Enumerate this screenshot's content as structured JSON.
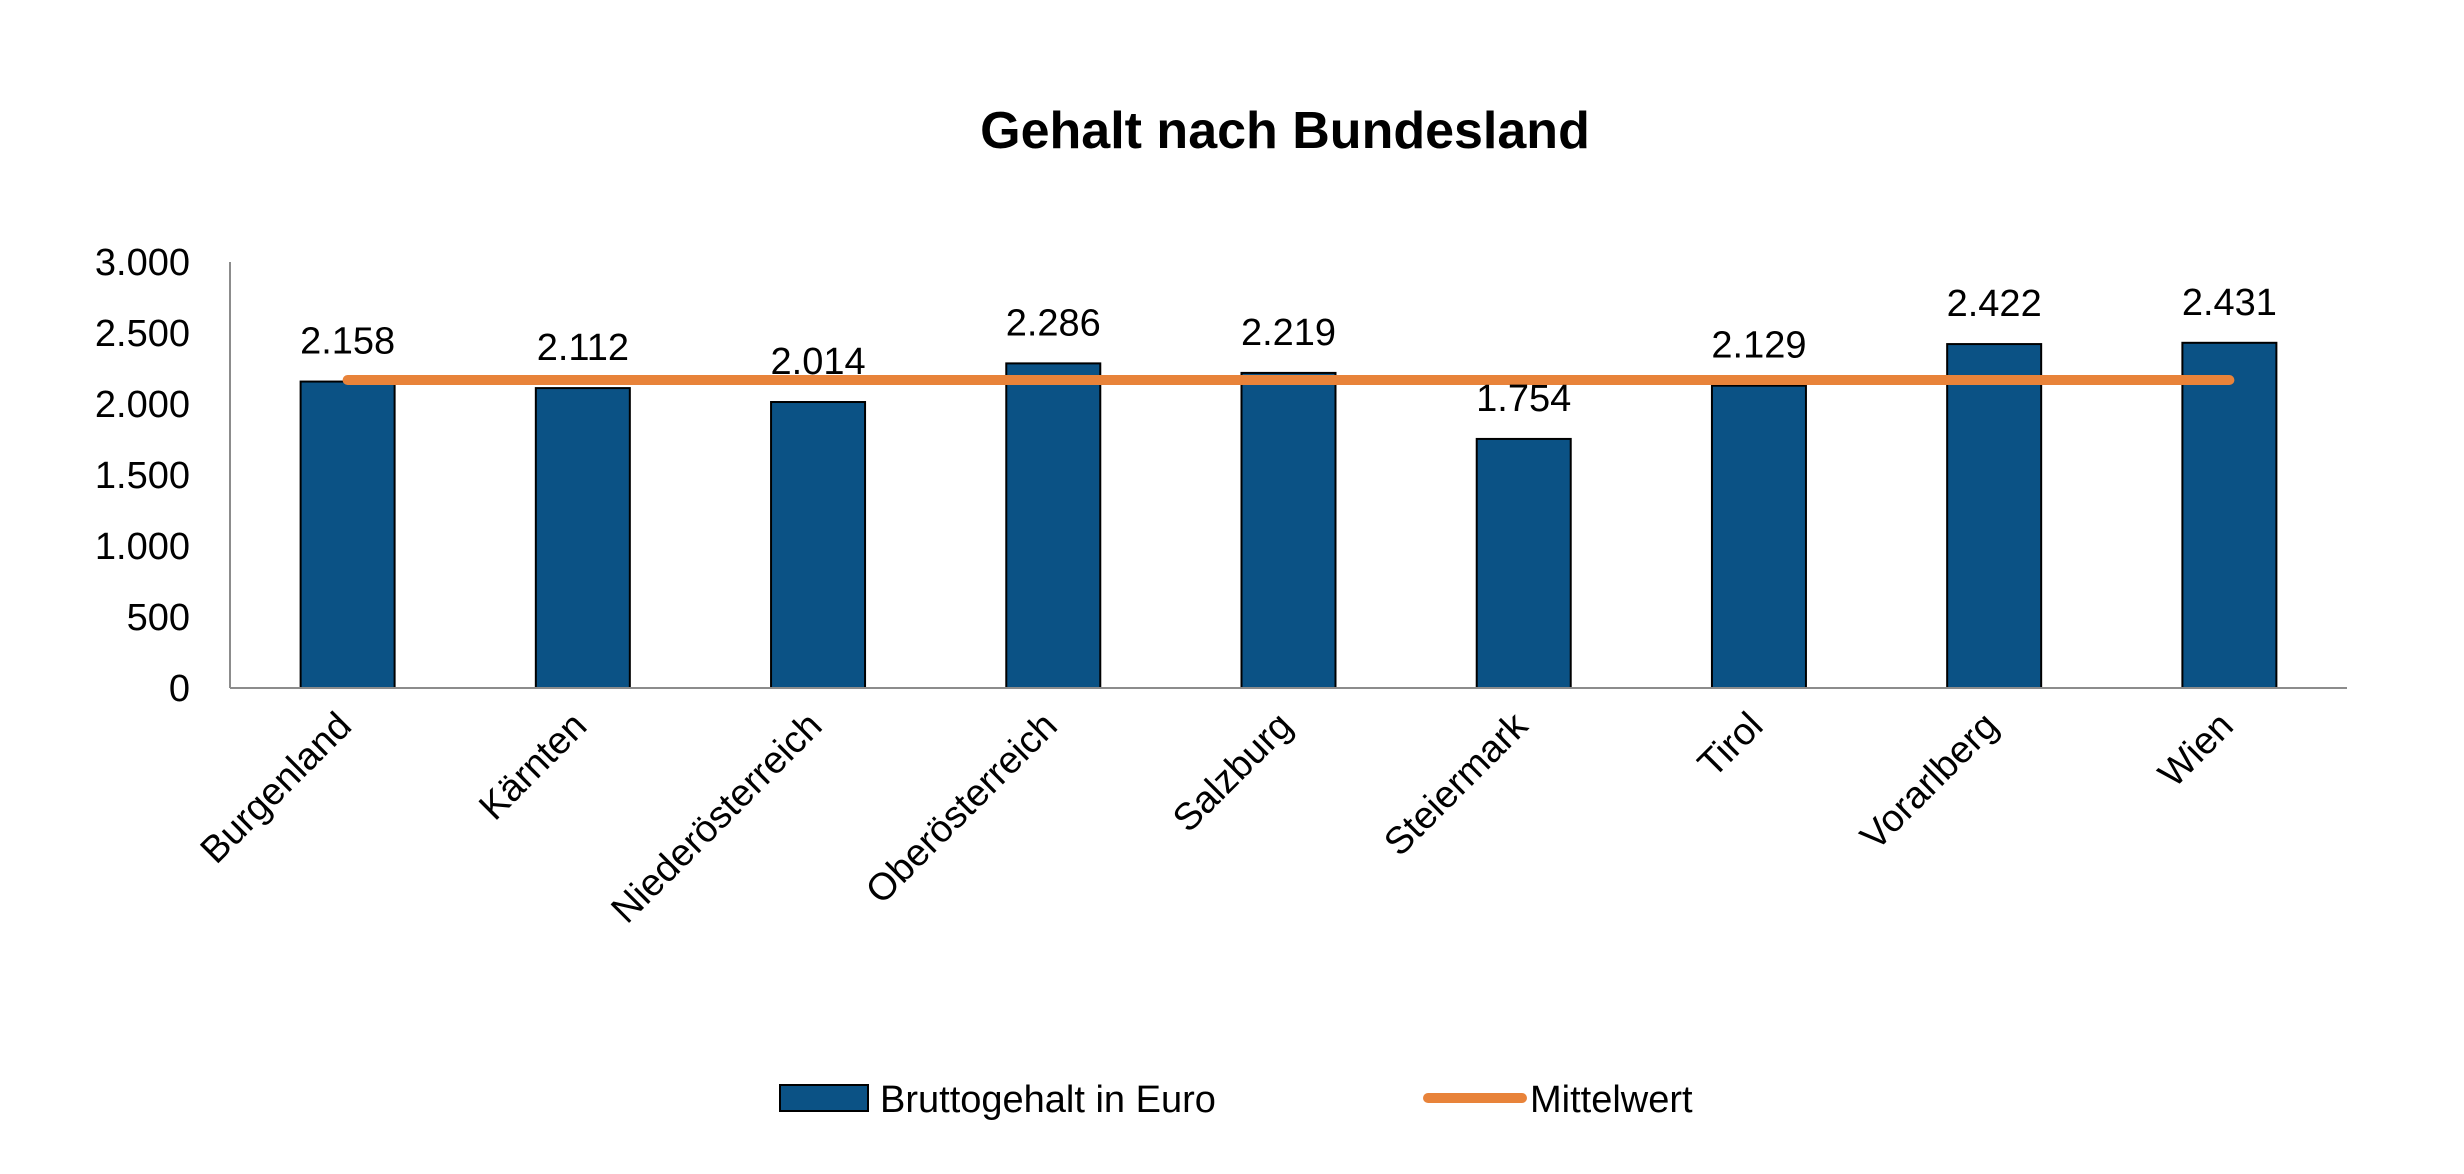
{
  "chart_data": {
    "type": "bar",
    "title": "Gehalt nach Bundesland",
    "categories": [
      "Burgenland",
      "Kärnten",
      "Niederösterreich",
      "Oberösterreich",
      "Salzburg",
      "Steiermark",
      "Tirol",
      "Vorarlberg",
      "Wien"
    ],
    "series": [
      {
        "name": "Bruttogehalt in Euro",
        "type": "bar",
        "values": [
          2158,
          2112,
          2014,
          2286,
          2219,
          1754,
          2129,
          2422,
          2431
        ],
        "labels": [
          "2.158",
          "2.112",
          "2.014",
          "2.286",
          "2.219",
          "1.754",
          "2.129",
          "2.422",
          "2.431"
        ],
        "color": "#0B5285"
      },
      {
        "name": "Mittelwert",
        "type": "line",
        "values": [
          2169,
          2169,
          2169,
          2169,
          2169,
          2169,
          2169,
          2169,
          2169
        ],
        "color": "#E8833A"
      }
    ],
    "ylim": [
      0,
      3000
    ],
    "yticks": [
      0,
      500,
      1000,
      1500,
      2000,
      2500,
      3000
    ],
    "ytick_labels": [
      "0",
      "500",
      "1.000",
      "1.500",
      "2.000",
      "2.500",
      "3.000"
    ],
    "xlabel": "",
    "ylabel": "",
    "grid": false,
    "legend_position": "bottom"
  }
}
